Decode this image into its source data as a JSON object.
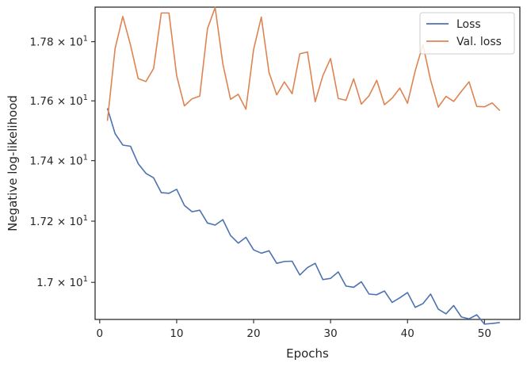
{
  "chart_data": {
    "type": "line",
    "xlabel": "Epochs",
    "ylabel": "Negative log-likelihood",
    "xlim": [
      -0.6,
      54.6
    ],
    "ylim": [
      16.88,
      17.918
    ],
    "yscale": "log",
    "grid": false,
    "legend_position": "top-right",
    "x_ticks": [
      0,
      10,
      20,
      30,
      40,
      50
    ],
    "x_tick_labels": [
      "0",
      "10",
      "20",
      "30",
      "40",
      "50"
    ],
    "y_ticks": [
      17.0,
      17.2,
      17.4,
      17.6,
      17.8
    ],
    "y_tick_labels": [
      {
        "mantissa": "1.7",
        "exponent": "1"
      },
      {
        "mantissa": "1.72",
        "exponent": "1"
      },
      {
        "mantissa": "1.74",
        "exponent": "1"
      },
      {
        "mantissa": "1.76",
        "exponent": "1"
      },
      {
        "mantissa": "1.78",
        "exponent": "1"
      }
    ],
    "x": [
      1,
      2,
      3,
      4,
      5,
      6,
      7,
      8,
      9,
      10,
      11,
      12,
      13,
      14,
      15,
      16,
      17,
      18,
      19,
      20,
      21,
      22,
      23,
      24,
      25,
      26,
      27,
      28,
      29,
      30,
      31,
      32,
      33,
      34,
      35,
      36,
      37,
      38,
      39,
      40,
      41,
      42,
      43,
      44,
      45,
      46,
      47,
      48,
      49,
      50,
      51,
      52
    ],
    "series": [
      {
        "name": "Loss",
        "color": "#4c72b0",
        "values": [
          17.575,
          17.49,
          17.452,
          17.448,
          17.39,
          17.358,
          17.343,
          17.294,
          17.292,
          17.305,
          17.252,
          17.231,
          17.236,
          17.194,
          17.187,
          17.205,
          17.153,
          17.128,
          17.147,
          17.106,
          17.095,
          17.103,
          17.062,
          17.068,
          17.069,
          17.024,
          17.048,
          17.062,
          17.009,
          17.013,
          17.034,
          16.988,
          16.984,
          17.002,
          16.962,
          16.96,
          16.972,
          16.935,
          16.95,
          16.967,
          16.919,
          16.931,
          16.962,
          16.913,
          16.898,
          16.925,
          16.888,
          16.882,
          16.895,
          16.865,
          16.867,
          16.87
        ]
      },
      {
        "name": "Val. loss",
        "color": "#dd8452",
        "values": [
          17.533,
          17.777,
          17.886,
          17.789,
          17.675,
          17.665,
          17.709,
          17.898,
          17.898,
          17.685,
          17.583,
          17.607,
          17.616,
          17.844,
          17.917,
          17.725,
          17.605,
          17.622,
          17.572,
          17.774,
          17.884,
          17.696,
          17.62,
          17.664,
          17.624,
          17.759,
          17.765,
          17.597,
          17.685,
          17.743,
          17.608,
          17.602,
          17.674,
          17.589,
          17.617,
          17.669,
          17.587,
          17.609,
          17.643,
          17.592,
          17.701,
          17.79,
          17.67,
          17.579,
          17.615,
          17.598,
          17.632,
          17.664,
          17.581,
          17.58,
          17.593,
          17.567
        ]
      }
    ]
  }
}
